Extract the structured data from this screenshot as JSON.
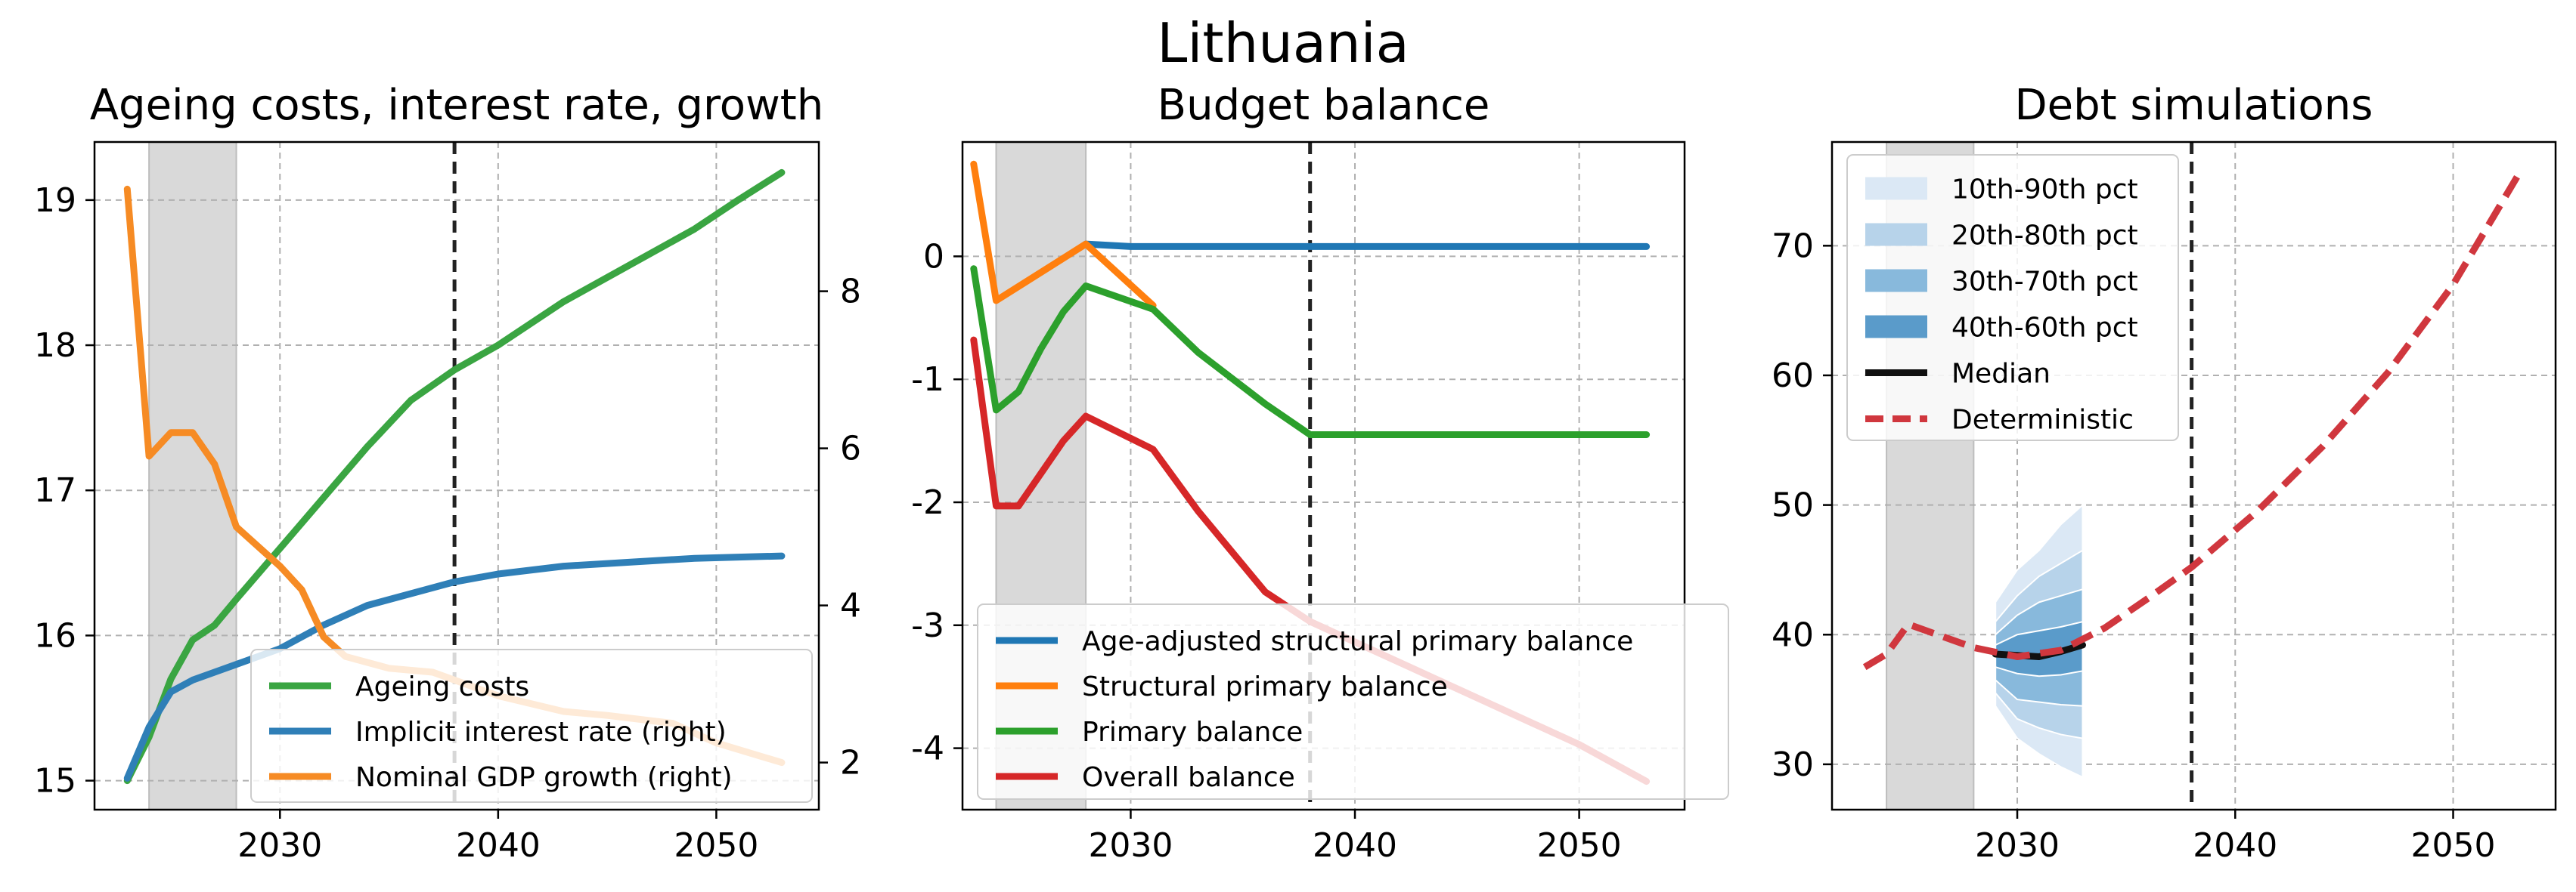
{
  "figure": {
    "title": "Lithuania"
  },
  "colors": {
    "blue": "#1f77b4",
    "orange": "#ff7f0e",
    "green": "#2ca02c",
    "red": "#d62728",
    "ageing_green": "#3aa542",
    "implicit_blue": "#2f7fb7",
    "gdp_orange": "#f68b24",
    "deterministic_red": "#d0373e",
    "shade": "#d9d9d9",
    "fan_10_90": "#dbe8f5",
    "fan_20_80": "#b7d3ea",
    "fan_30_70": "#88b9dc",
    "fan_40_60": "#5a9bca",
    "median": "#111111"
  },
  "chart_data": [
    {
      "type": "line",
      "title": "Ageing costs, interest rate, growth",
      "xlim": [
        2021.5,
        2054.7
      ],
      "ylim": [
        14.8,
        19.4
      ],
      "y2lim": [
        1.4,
        9.9
      ],
      "xticks": [
        2030,
        2040,
        2050
      ],
      "yticks": [
        15,
        16,
        17,
        18,
        19
      ],
      "y2ticks": [
        2,
        4,
        6,
        8
      ],
      "shaded_region": [
        2024,
        2028
      ],
      "vline": 2038,
      "grid": true,
      "legend_position": "lower-right",
      "series": [
        {
          "name": "Ageing costs",
          "axis": "left",
          "color_key": "ageing_green",
          "x": [
            2023,
            2024,
            2025,
            2026,
            2027,
            2028,
            2030,
            2032,
            2034,
            2036,
            2038,
            2040,
            2043,
            2046,
            2049,
            2051,
            2053
          ],
          "y": [
            15.0,
            15.3,
            15.7,
            15.97,
            16.07,
            16.25,
            16.6,
            16.95,
            17.3,
            17.62,
            17.83,
            18.0,
            18.3,
            18.55,
            18.8,
            19.0,
            19.19
          ]
        },
        {
          "name": "Implicit interest rate (right)",
          "axis": "right",
          "color_key": "implicit_blue",
          "x": [
            2023,
            2024,
            2025,
            2026,
            2028,
            2030,
            2032,
            2034,
            2036,
            2038,
            2040,
            2043,
            2046,
            2049,
            2053
          ],
          "y": [
            1.8,
            2.45,
            2.9,
            3.05,
            3.25,
            3.45,
            3.75,
            4.0,
            4.15,
            4.3,
            4.4,
            4.5,
            4.55,
            4.6,
            4.63
          ]
        },
        {
          "name": "Nominal GDP growth (right)",
          "axis": "right",
          "color_key": "gdp_orange",
          "x": [
            2023,
            2024,
            2025,
            2026,
            2027,
            2028,
            2030,
            2031,
            2032,
            2033,
            2035,
            2037,
            2040,
            2043,
            2045,
            2048,
            2050,
            2053
          ],
          "y": [
            9.3,
            5.9,
            6.2,
            6.2,
            5.8,
            5.0,
            4.5,
            4.2,
            3.6,
            3.35,
            3.2,
            3.15,
            2.85,
            2.65,
            2.6,
            2.5,
            2.25,
            2.0
          ]
        }
      ]
    },
    {
      "type": "line",
      "title": "Budget balance",
      "xlim": [
        2022.5,
        2054.7
      ],
      "ylim": [
        -4.5,
        0.93
      ],
      "xticks": [
        2030,
        2040,
        2050
      ],
      "yticks": [
        0,
        -1,
        -2,
        -3,
        -4
      ],
      "ytick_labels": [
        "0",
        "-1",
        "-2",
        "-3",
        "-4"
      ],
      "shaded_region": [
        2024,
        2028
      ],
      "vline": 2038,
      "grid": true,
      "legend_position": "lower-right",
      "series": [
        {
          "name": "Age-adjusted structural primary balance",
          "color_key": "blue",
          "x": [
            2028,
            2030,
            2038,
            2053
          ],
          "y": [
            0.1,
            0.08,
            0.08,
            0.08
          ]
        },
        {
          "name": "Structural primary balance",
          "color_key": "orange",
          "x": [
            2023,
            2024,
            2028,
            2031
          ],
          "y": [
            0.75,
            -0.36,
            0.1,
            -0.4
          ]
        },
        {
          "name": "Primary balance",
          "color_key": "green",
          "x": [
            2023,
            2024,
            2025,
            2026,
            2027,
            2028,
            2031,
            2033,
            2036,
            2038,
            2053
          ],
          "y": [
            -0.1,
            -1.25,
            -1.1,
            -0.75,
            -0.45,
            -0.24,
            -0.43,
            -0.78,
            -1.2,
            -1.45,
            -1.45
          ]
        },
        {
          "name": "Overall balance",
          "color_key": "red",
          "x": [
            2023,
            2024,
            2025,
            2027,
            2028,
            2031,
            2033,
            2036,
            2038,
            2041,
            2044,
            2047,
            2050,
            2053
          ],
          "y": [
            -0.68,
            -2.03,
            -2.03,
            -1.5,
            -1.3,
            -1.57,
            -2.07,
            -2.73,
            -2.97,
            -3.22,
            -3.47,
            -3.72,
            -3.97,
            -4.27
          ]
        }
      ]
    },
    {
      "type": "line",
      "title": "Debt simulations",
      "xlim": [
        2021.5,
        2054.7
      ],
      "ylim": [
        26.5,
        78.0
      ],
      "xticks": [
        2030,
        2040,
        2050
      ],
      "yticks": [
        30,
        40,
        50,
        60,
        70
      ],
      "shaded_region": [
        2024,
        2028
      ],
      "vline": 2038,
      "grid": true,
      "legend_position": "upper-left",
      "fan": {
        "x": [
          2029,
          2030,
          2031,
          2032,
          2033
        ],
        "bands": [
          {
            "name": "10th-90th pct",
            "color_key": "fan_10_90",
            "lower": [
              34.5,
              32.0,
              30.8,
              29.8,
              29.0
            ],
            "upper": [
              42.5,
              45.0,
              46.5,
              48.5,
              50.0
            ]
          },
          {
            "name": "20th-80th pct",
            "color_key": "fan_20_80",
            "lower": [
              35.5,
              33.5,
              32.8,
              32.3,
              32.0
            ],
            "upper": [
              41.0,
              43.0,
              44.5,
              45.5,
              46.5
            ]
          },
          {
            "name": "30th-70th pct",
            "color_key": "fan_30_70",
            "lower": [
              36.5,
              35.0,
              34.8,
              34.6,
              34.5
            ],
            "upper": [
              40.0,
              41.5,
              42.5,
              43.0,
              43.5
            ]
          },
          {
            "name": "40th-60th pct",
            "color_key": "fan_40_60",
            "lower": [
              37.5,
              37.0,
              36.8,
              36.9,
              37.2
            ],
            "upper": [
              39.2,
              40.0,
              40.3,
              40.6,
              41.0
            ]
          }
        ]
      },
      "series": [
        {
          "name": "Median",
          "color_key": "median",
          "x": [
            2029,
            2030,
            2031,
            2032,
            2033
          ],
          "y": [
            38.5,
            38.4,
            38.3,
            38.7,
            39.2
          ]
        },
        {
          "name": "Deterministic",
          "color_key": "deterministic_red",
          "dashed": true,
          "x": [
            2023,
            2024,
            2025,
            2026,
            2027,
            2028,
            2030,
            2032,
            2034,
            2036,
            2038,
            2041,
            2044,
            2047,
            2050,
            2053
          ],
          "y": [
            37.5,
            38.5,
            40.8,
            40.2,
            39.6,
            39.0,
            38.3,
            38.8,
            40.5,
            42.8,
            45.2,
            49.5,
            54.5,
            60.2,
            67.0,
            75.5
          ]
        }
      ]
    }
  ]
}
